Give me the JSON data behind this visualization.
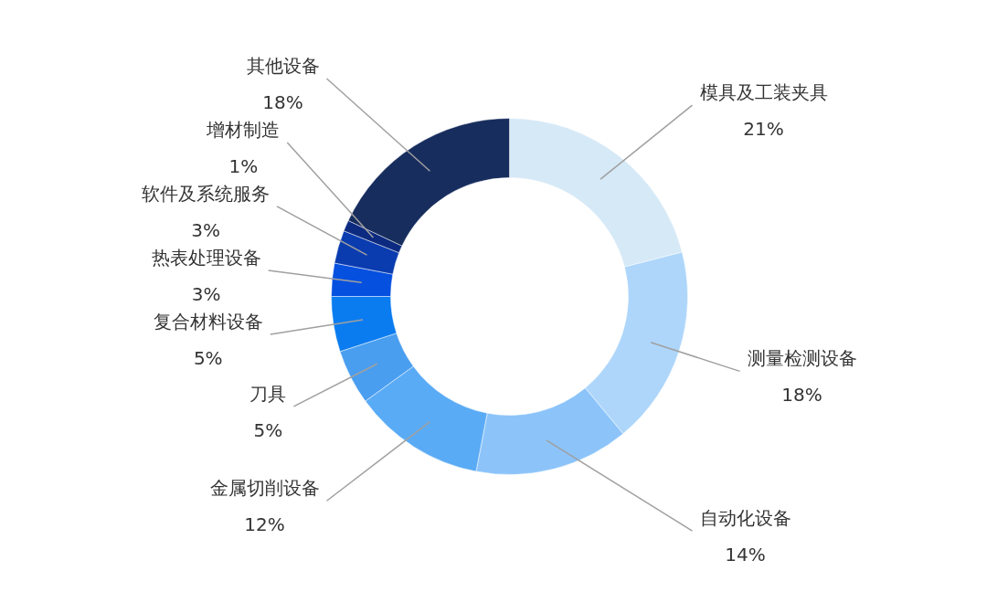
{
  "chart_data": {
    "type": "donut",
    "categories": [
      "模具及工装夹具",
      "测量检测设备",
      "自动化设备",
      "金属切削设备",
      "刀具",
      "复合材料设备",
      "热表处理设备",
      "软件及系统服务",
      "增材制造",
      "其他设备"
    ],
    "values": [
      21,
      18,
      14,
      12,
      5,
      5,
      3,
      3,
      1,
      18
    ],
    "value_labels": [
      "21%",
      "18%",
      "14%",
      "12%",
      "5%",
      "5%",
      "3%",
      "3%",
      "1%",
      "18%"
    ],
    "colors": [
      "#d6e9f7",
      "#aed6fb",
      "#8cc4fa",
      "#5aabf5",
      "#4a9ef0",
      "#0a7cf0",
      "#0650e0",
      "#0a3cb0",
      "#0c2a80",
      "#172d5e"
    ]
  }
}
